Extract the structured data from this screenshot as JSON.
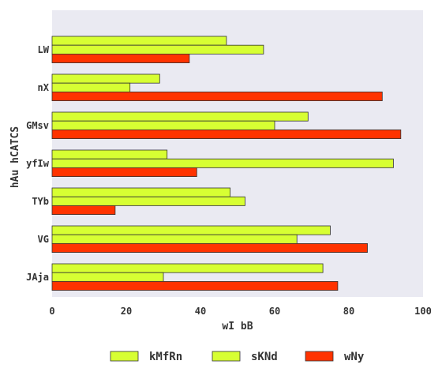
{
  "chart_data": {
    "type": "bar",
    "orientation": "horizontal",
    "categories": [
      "LW",
      "nX",
      "GMsv",
      "yfIw",
      "TYb",
      "VG",
      "JAja"
    ],
    "series": [
      {
        "name": "kMfRn",
        "values": [
          47,
          29,
          69,
          31,
          48,
          75,
          73
        ],
        "color": "#d7ff33"
      },
      {
        "name": "sKNd",
        "values": [
          57,
          21,
          60,
          92,
          52,
          66,
          30
        ],
        "color": "#d7ff33"
      },
      {
        "name": "wNy",
        "values": [
          37,
          89,
          94,
          39,
          17,
          85,
          77
        ],
        "color": "#ff3300"
      }
    ],
    "xlabel": "wI bB",
    "ylabel": "hAu hCATCS",
    "xlim": [
      0,
      100
    ],
    "xticks": [
      "0",
      "20",
      "40",
      "60",
      "80",
      "100"
    ],
    "grid": false,
    "legend_position": "bottom",
    "plot_background": "#eaeaf2"
  }
}
